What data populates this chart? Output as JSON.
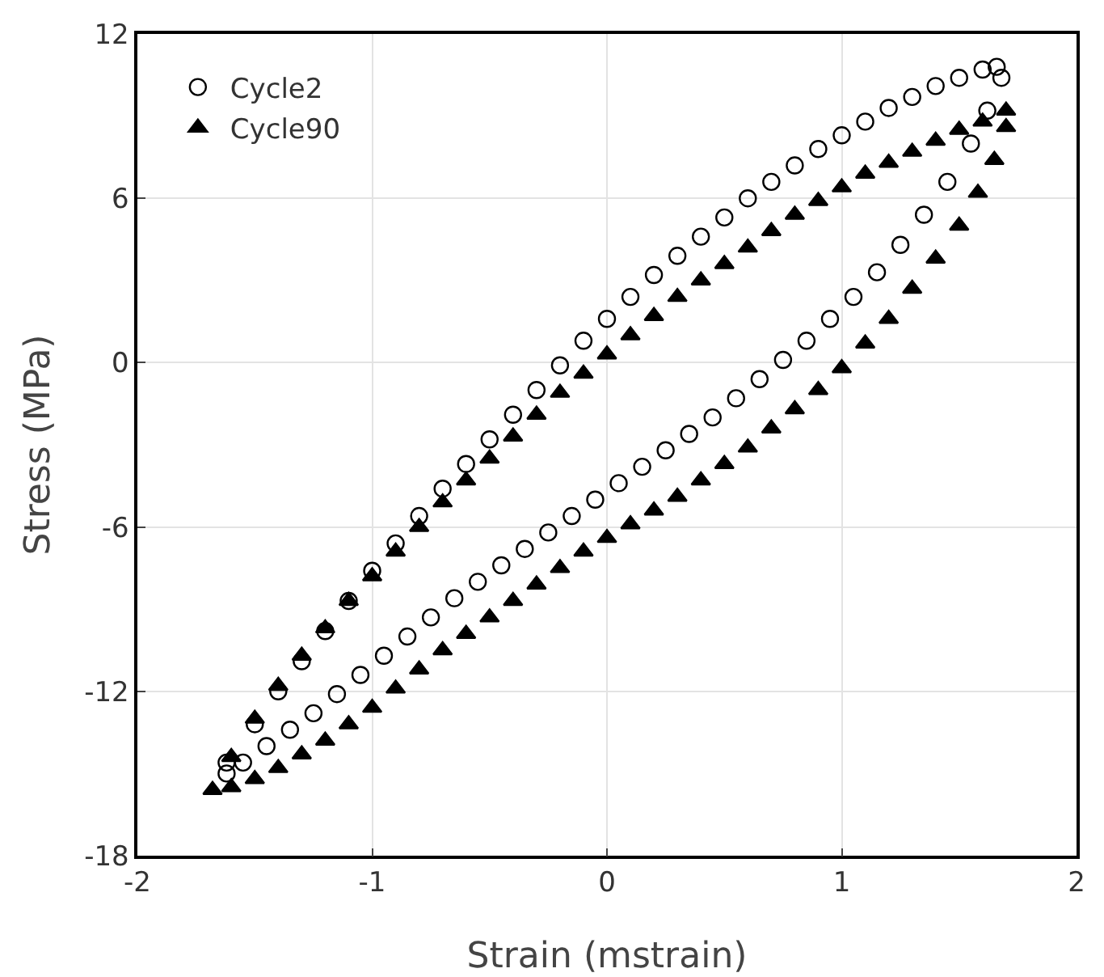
{
  "chart_data": {
    "type": "scatter",
    "xlabel": "Strain (mstrain)",
    "ylabel": "Stress (MPa)",
    "xlim": [
      -2,
      2
    ],
    "xticks": [
      -2,
      -1,
      0,
      1,
      2
    ],
    "ylim": [
      -18,
      12
    ],
    "yticks": [
      -18,
      -12,
      -6,
      0,
      6,
      12
    ],
    "grid": true,
    "legend": "top left",
    "series": [
      {
        "name": "Cycle2",
        "color": "#000000",
        "marker": "circle",
        "x": [
          -1.62,
          -1.5,
          -1.4,
          -1.3,
          -1.2,
          -1.1,
          -1.0,
          -0.9,
          -0.8,
          -0.7,
          -0.6,
          -0.5,
          -0.4,
          -0.3,
          -0.2,
          -0.1,
          0,
          0.1,
          0.2,
          0.3,
          0.4,
          0.5,
          0.6,
          0.7,
          0.8,
          0.9,
          1.0,
          1.1,
          1.2,
          1.3,
          1.4,
          1.5,
          1.6,
          1.66,
          1.68,
          1.62,
          1.55,
          1.45,
          1.35,
          1.25,
          1.15,
          1.05,
          0.95,
          0.85,
          0.75,
          0.65,
          0.55,
          0.45,
          0.35,
          0.25,
          0.15,
          0.05,
          -0.05,
          -0.15,
          -0.25,
          -0.35,
          -0.45,
          -0.55,
          -0.65,
          -0.75,
          -0.85,
          -0.95,
          -1.05,
          -1.15,
          -1.25,
          -1.35,
          -1.45,
          -1.55,
          -1.62
        ],
        "values": [
          -14.6,
          -13.2,
          -12.0,
          -10.9,
          -9.8,
          -8.7,
          -7.6,
          -6.6,
          -5.6,
          -4.6,
          -3.7,
          -2.8,
          -1.9,
          -1.0,
          -0.1,
          0.8,
          1.6,
          2.4,
          3.2,
          3.9,
          4.6,
          5.3,
          6.0,
          6.6,
          7.2,
          7.8,
          8.3,
          8.8,
          9.3,
          9.7,
          10.1,
          10.4,
          10.7,
          10.8,
          10.4,
          9.2,
          8.0,
          6.6,
          5.4,
          4.3,
          3.3,
          2.4,
          1.6,
          0.8,
          0.1,
          -0.6,
          -1.3,
          -2.0,
          -2.6,
          -3.2,
          -3.8,
          -4.4,
          -5.0,
          -5.6,
          -6.2,
          -6.8,
          -7.4,
          -8.0,
          -8.6,
          -9.3,
          -10.0,
          -10.7,
          -11.4,
          -12.1,
          -12.8,
          -13.4,
          -14.0,
          -14.6,
          -15.0
        ]
      },
      {
        "name": "Cycle90",
        "color": "#000000",
        "marker": "triangle",
        "x": [
          -1.68,
          -1.6,
          -1.5,
          -1.4,
          -1.3,
          -1.2,
          -1.1,
          -1.0,
          -0.9,
          -0.8,
          -0.7,
          -0.6,
          -0.5,
          -0.4,
          -0.3,
          -0.2,
          -0.1,
          0,
          0.1,
          0.2,
          0.3,
          0.4,
          0.5,
          0.6,
          0.7,
          0.8,
          0.9,
          1.0,
          1.1,
          1.2,
          1.3,
          1.4,
          1.5,
          1.6,
          1.7,
          1.7,
          1.65,
          1.58,
          1.5,
          1.4,
          1.3,
          1.2,
          1.1,
          1.0,
          0.9,
          0.8,
          0.7,
          0.6,
          0.5,
          0.4,
          0.3,
          0.2,
          0.1,
          0,
          -0.1,
          -0.2,
          -0.3,
          -0.4,
          -0.5,
          -0.6,
          -0.7,
          -0.8,
          -0.9,
          -1.0,
          -1.1,
          -1.2,
          -1.3,
          -1.4,
          -1.5,
          -1.6
        ],
        "values": [
          -15.6,
          -14.4,
          -13.0,
          -11.8,
          -10.7,
          -9.7,
          -8.7,
          -7.8,
          -6.9,
          -6.0,
          -5.1,
          -4.3,
          -3.5,
          -2.7,
          -1.9,
          -1.1,
          -0.4,
          0.3,
          1.0,
          1.7,
          2.4,
          3.0,
          3.6,
          4.2,
          4.8,
          5.4,
          5.9,
          6.4,
          6.9,
          7.3,
          7.7,
          8.1,
          8.5,
          8.8,
          9.2,
          8.6,
          7.4,
          6.2,
          5.0,
          3.8,
          2.7,
          1.6,
          0.7,
          -0.2,
          -1.0,
          -1.7,
          -2.4,
          -3.1,
          -3.7,
          -4.3,
          -4.9,
          -5.4,
          -5.9,
          -6.4,
          -6.9,
          -7.5,
          -8.1,
          -8.7,
          -9.3,
          -9.9,
          -10.5,
          -11.2,
          -11.9,
          -12.6,
          -13.2,
          -13.8,
          -14.3,
          -14.8,
          -15.2,
          -15.5
        ]
      }
    ]
  }
}
